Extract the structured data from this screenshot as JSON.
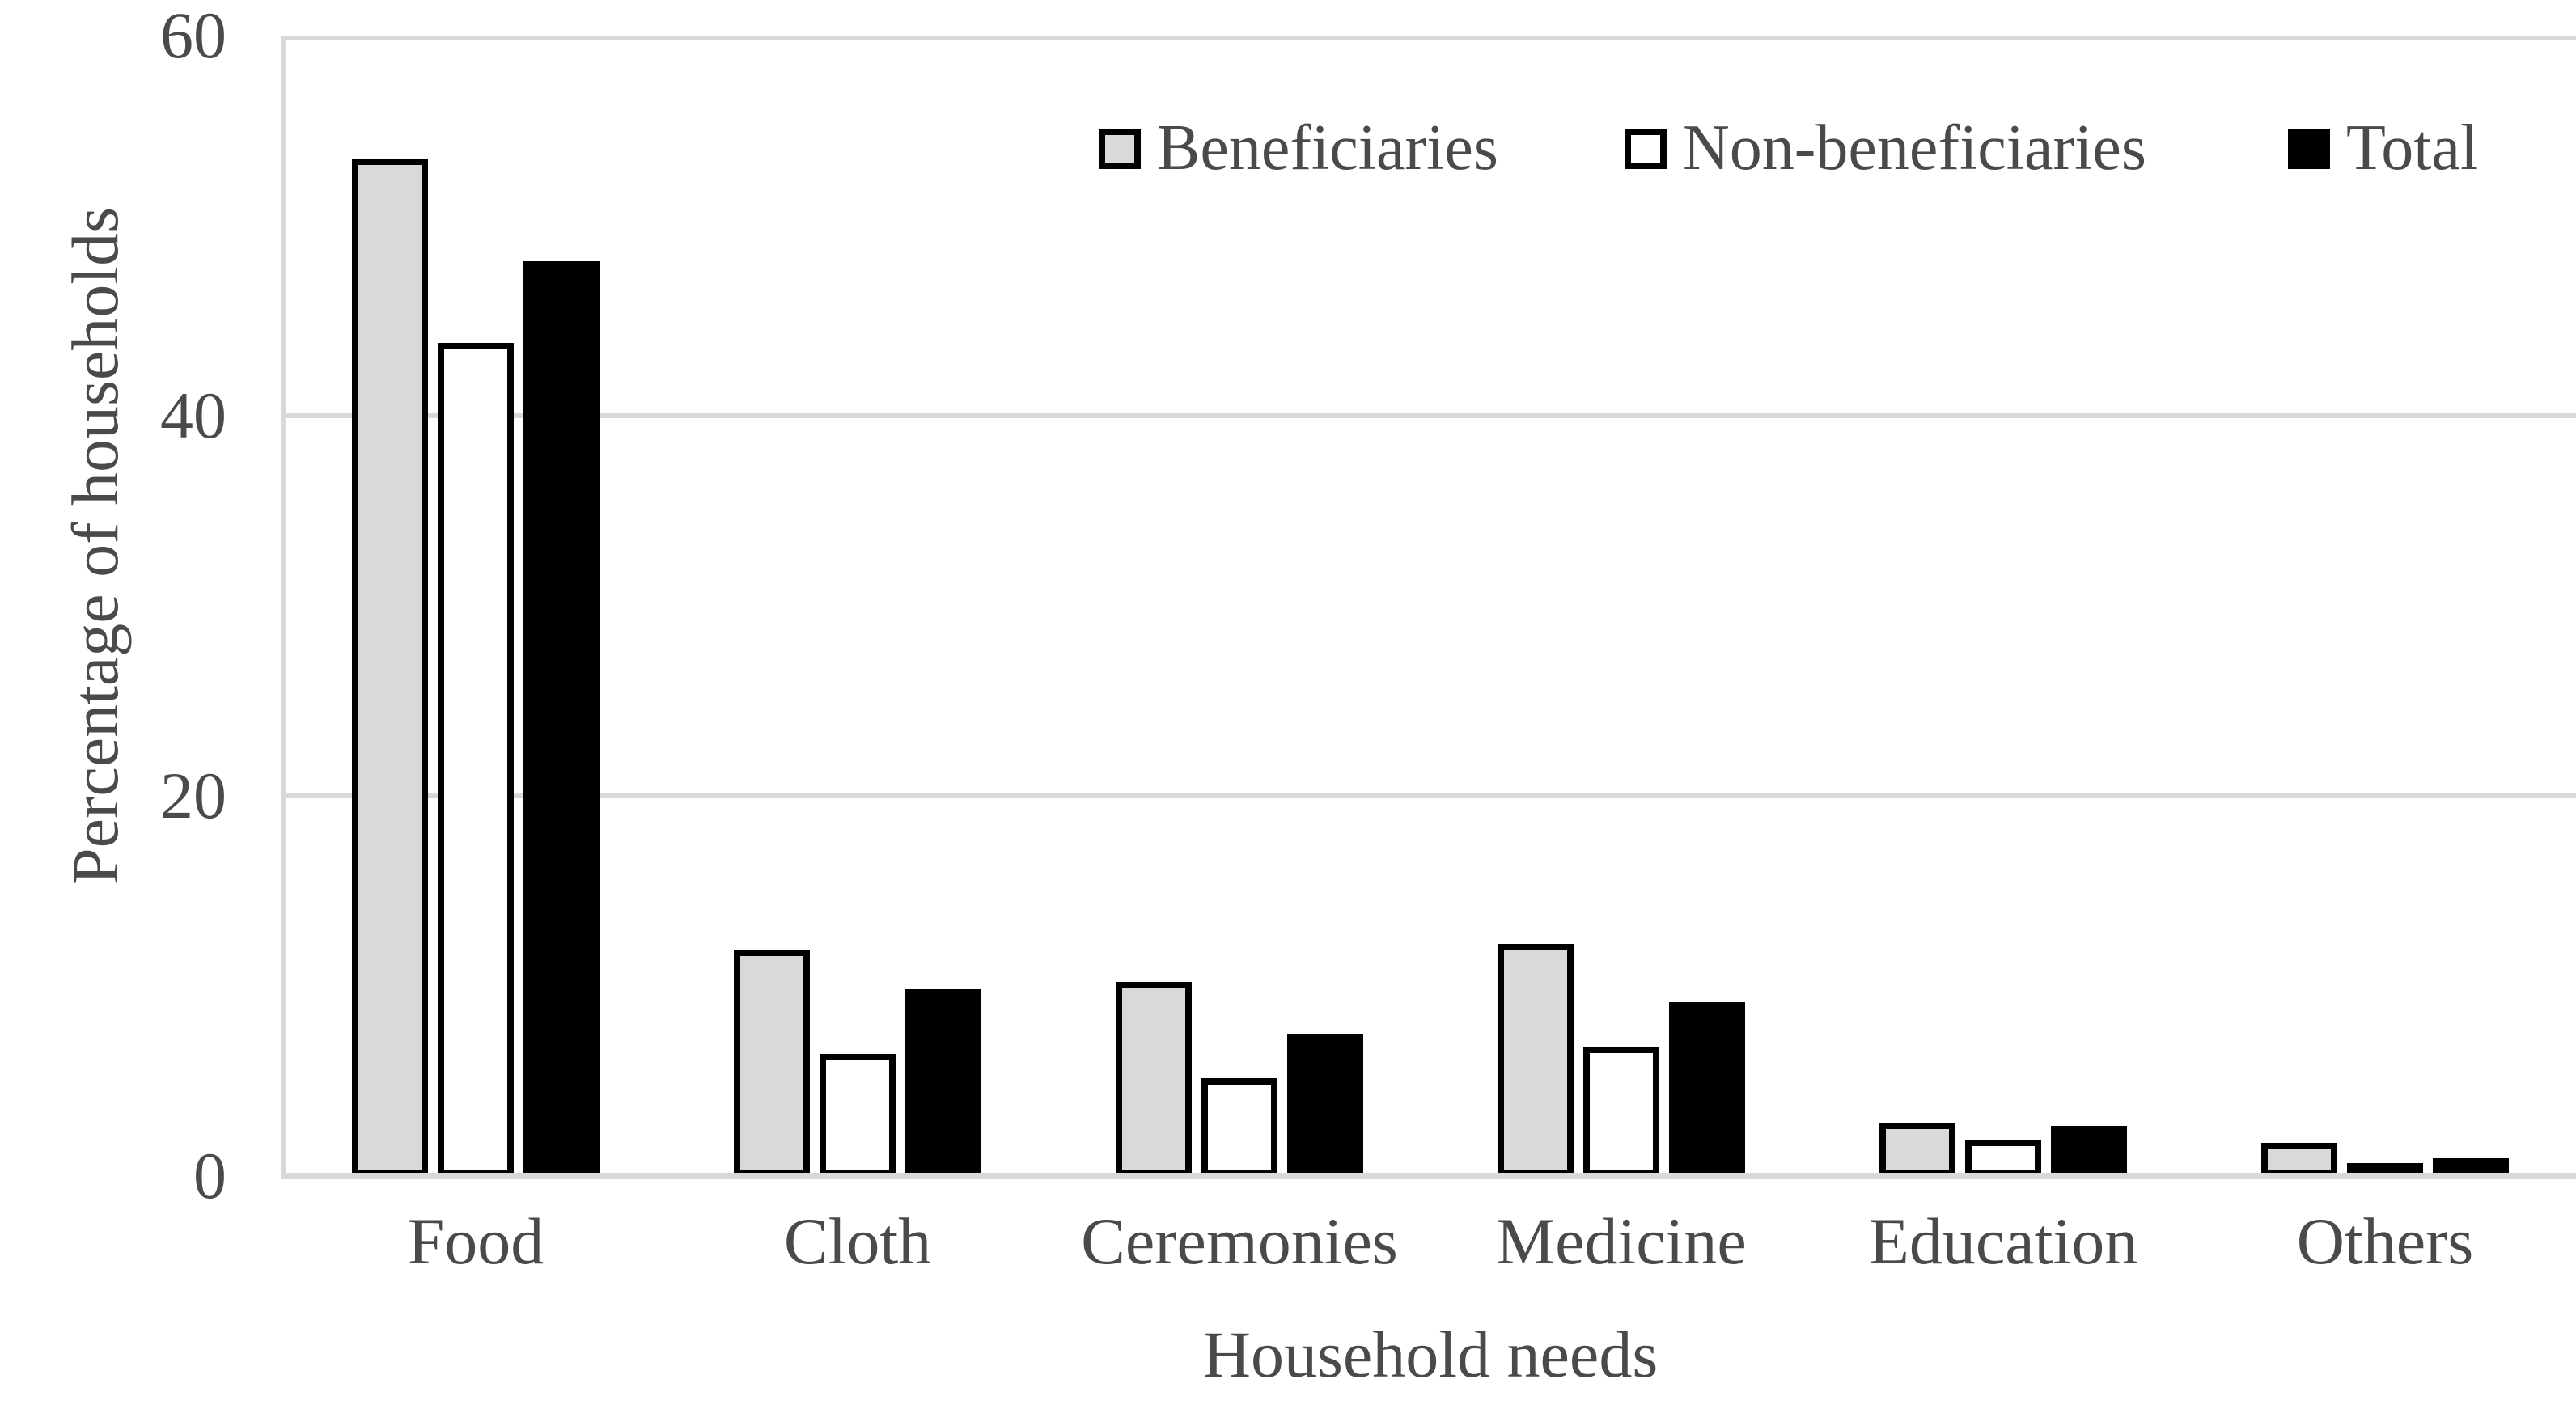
{
  "figure": {
    "background": "#ffffff",
    "text_color": "#4a4a4a",
    "gridline_color": "#d9d9d9",
    "bar_outline_color": "#000000"
  },
  "chart_data": {
    "type": "bar",
    "title": "",
    "xlabel": "Household needs",
    "ylabel": "Percentage of households",
    "categories": [
      "Food",
      "Cloth",
      "Ceremonies",
      "Medicine",
      "Education",
      "Others"
    ],
    "series": [
      {
        "name": "Beneficiaries",
        "fill": "#d9d9d9",
        "values": [
          53.7,
          12.1,
          10.4,
          12.4,
          3.0,
          1.9
        ]
      },
      {
        "name": "Non-beneficiaries",
        "fill": "#ffffff",
        "values": [
          44.0,
          6.6,
          5.3,
          7.0,
          2.1,
          0.4
        ]
      },
      {
        "name": "Total",
        "fill": "#000000",
        "values": [
          48.3,
          10.0,
          7.6,
          9.3,
          2.8,
          1.1
        ]
      }
    ],
    "ylim": [
      0,
      60
    ],
    "yticks": [
      0,
      20,
      40,
      60
    ],
    "grid": true,
    "legend_position": "top-inside-right"
  }
}
